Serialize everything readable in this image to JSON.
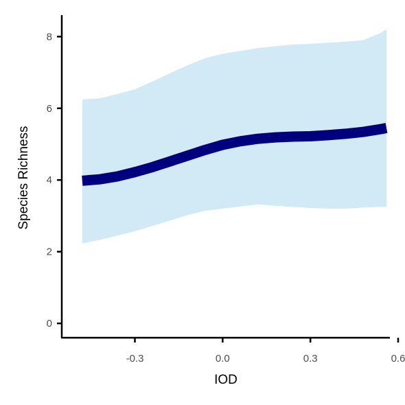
{
  "chart_data": {
    "type": "line",
    "xlabel": "IOD",
    "ylabel": "Species Richness",
    "xlim": [
      -0.55,
      0.6
    ],
    "ylim": [
      -0.4,
      8.6
    ],
    "x_ticks": [
      -0.3,
      0.0,
      0.3,
      0.6
    ],
    "x_tick_labels": [
      "-0.3",
      "0.0",
      "0.3",
      "0.6"
    ],
    "y_ticks": [
      0,
      2,
      4,
      6,
      8
    ],
    "y_tick_labels": [
      "0",
      "2",
      "4",
      "6",
      "8"
    ],
    "grid": false,
    "series": [
      {
        "x": [
          -0.48,
          -0.42,
          -0.36,
          -0.3,
          -0.24,
          -0.18,
          -0.12,
          -0.06,
          0.0,
          0.06,
          0.12,
          0.18,
          0.24,
          0.3,
          0.36,
          0.42,
          0.48,
          0.54,
          0.56
        ],
        "y": [
          3.98,
          4.02,
          4.1,
          4.22,
          4.36,
          4.52,
          4.68,
          4.84,
          4.98,
          5.08,
          5.15,
          5.19,
          5.21,
          5.22,
          5.25,
          5.29,
          5.34,
          5.42,
          5.45
        ],
        "lower": [
          2.23,
          2.33,
          2.45,
          2.57,
          2.72,
          2.87,
          3.02,
          3.14,
          3.2,
          3.26,
          3.32,
          3.28,
          3.25,
          3.22,
          3.2,
          3.2,
          3.23,
          3.25,
          3.25
        ],
        "upper": [
          6.25,
          6.28,
          6.4,
          6.53,
          6.75,
          6.98,
          7.2,
          7.4,
          7.52,
          7.6,
          7.68,
          7.73,
          7.78,
          7.8,
          7.83,
          7.86,
          7.9,
          8.1,
          8.2
        ],
        "color": "#00007f",
        "band_color": "#d1eaf6"
      }
    ]
  },
  "colors": {
    "line": "#00007f",
    "band": "#d1eaf6",
    "axis": "#000000",
    "tick_text": "#4d4d4d"
  }
}
